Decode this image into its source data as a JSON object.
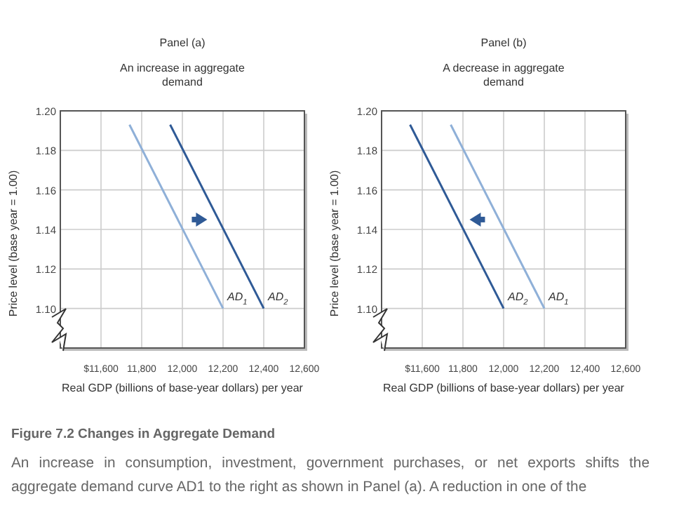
{
  "chart_data": [
    {
      "type": "line",
      "title": "Panel (a)",
      "subtitle": "An increase in aggregate demand",
      "xlabel": "Real GDP (billions of base-year dollars) per year",
      "ylabel": "Price level (base year = 1.00)",
      "xlim": [
        11400,
        12600
      ],
      "ylim": [
        1.08,
        1.2
      ],
      "xticks": [
        {
          "value": 11600,
          "label": "$11,600"
        },
        {
          "value": 11800,
          "label": "11,800"
        },
        {
          "value": 12000,
          "label": "12,000"
        },
        {
          "value": 12200,
          "label": "12,200"
        },
        {
          "value": 12400,
          "label": "12,400"
        },
        {
          "value": 12600,
          "label": "12,600"
        }
      ],
      "yticks": [
        {
          "value": 1.1,
          "label": "1.10"
        },
        {
          "value": 1.12,
          "label": "1.12"
        },
        {
          "value": 1.14,
          "label": "1.14"
        },
        {
          "value": 1.16,
          "label": "1.16"
        },
        {
          "value": 1.18,
          "label": "1.18"
        },
        {
          "value": 1.2,
          "label": "1.20"
        }
      ],
      "grid": true,
      "legend": false,
      "marker": "none",
      "line_style": "solid",
      "series": [
        {
          "name": "AD$_{1}$",
          "color": "#8fb0d8",
          "x": [
            11740,
            12200
          ],
          "values": [
            1.193,
            1.1
          ]
        },
        {
          "name": "AD$_{2}$",
          "color": "#2f5a96",
          "x": [
            11940,
            12400
          ],
          "values": [
            1.193,
            1.1
          ]
        }
      ]
    },
    {
      "type": "line",
      "title": "Panel (b)",
      "subtitle": "A decrease in aggregate demand",
      "xlabel": "Real GDP (billions of base-year dollars) per year",
      "ylabel": "Price level (base year = 1.00)",
      "xlim": [
        11400,
        12600
      ],
      "ylim": [
        1.08,
        1.2
      ],
      "xticks": [
        {
          "value": 11600,
          "label": "$11,600"
        },
        {
          "value": 11800,
          "label": "11,800"
        },
        {
          "value": 12000,
          "label": "12,000"
        },
        {
          "value": 12200,
          "label": "12,200"
        },
        {
          "value": 12400,
          "label": "12,400"
        },
        {
          "value": 12600,
          "label": "12,600"
        }
      ],
      "yticks": [
        {
          "value": 1.1,
          "label": "1.10"
        },
        {
          "value": 1.12,
          "label": "1.12"
        },
        {
          "value": 1.14,
          "label": "1.14"
        },
        {
          "value": 1.16,
          "label": "1.16"
        },
        {
          "value": 1.18,
          "label": "1.18"
        },
        {
          "value": 1.2,
          "label": "1.20"
        }
      ],
      "grid": true,
      "legend": false,
      "marker": "none",
      "line_style": "solid",
      "series": [
        {
          "name": "AD$_{1}$",
          "color": "#8fb0d8",
          "x": [
            11740,
            12200
          ],
          "values": [
            1.193,
            1.1
          ]
        },
        {
          "name": "AD$_{2}$",
          "color": "#2f5a96",
          "x": [
            11540,
            12000
          ],
          "values": [
            1.193,
            1.1
          ]
        }
      ]
    },
    {
      "type": "other",
      "title": "Figure 7.2 Changes in Aggregate Demand",
      "annotations": [
        "An increase in consumption, investment, government purchases, or net exports shifts the aggregate demand curve AD1 to the right as shown in Panel (a). A reduction in one of the"
      ]
    }
  ]
}
